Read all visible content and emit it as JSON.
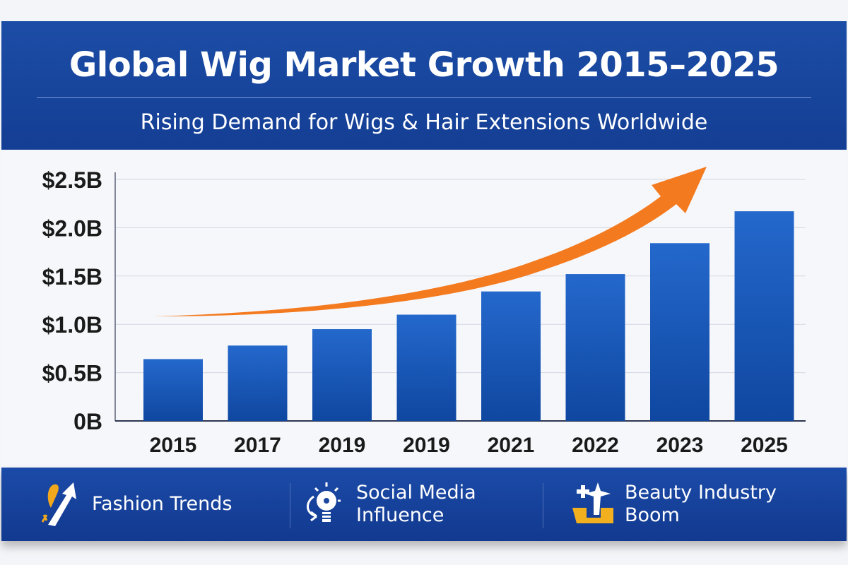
{
  "header": {
    "title": "Global Wig Market Growth 2015–2025",
    "subtitle": "Rising Demand for Wigs & Hair Extensions Worldwide"
  },
  "chart_data": {
    "type": "bar",
    "title": "Global Wig Market Growth 2015–2025",
    "subtitle": "Rising Demand for Wigs & Hair Extensions Worldwide",
    "categories": [
      "2015",
      "2017",
      "2019",
      "2019",
      "2021",
      "2022",
      "2023",
      "2025"
    ],
    "values": [
      0.64,
      0.78,
      0.95,
      1.1,
      1.34,
      1.52,
      1.84,
      2.17
    ],
    "unit": "billion USD",
    "ylim": [
      0,
      2.5
    ],
    "yticks": [
      0,
      0.5,
      1.0,
      1.5,
      2.0,
      2.5
    ],
    "ytick_labels": [
      "0B",
      "$0.5B",
      "$1.0B",
      "$1.5B",
      "$2.0B",
      "$2.5B"
    ],
    "grid": true,
    "trend_arrow": true,
    "colors": {
      "bar": "#1f5fc4",
      "arrow": "#f47a1f",
      "banner": "#1a47a0"
    }
  },
  "footer": {
    "items": [
      {
        "label": "Fashion Trends",
        "icon": "arrow-up-trend-icon"
      },
      {
        "label": "Social Media Influence",
        "line1": "Social Media",
        "line2": "Influence",
        "icon": "lightbulb-icon"
      },
      {
        "label": "Beauty Industry Boom",
        "line1": "Beauty Industry",
        "line2": "Boom",
        "icon": "sparkle-box-icon"
      }
    ]
  }
}
